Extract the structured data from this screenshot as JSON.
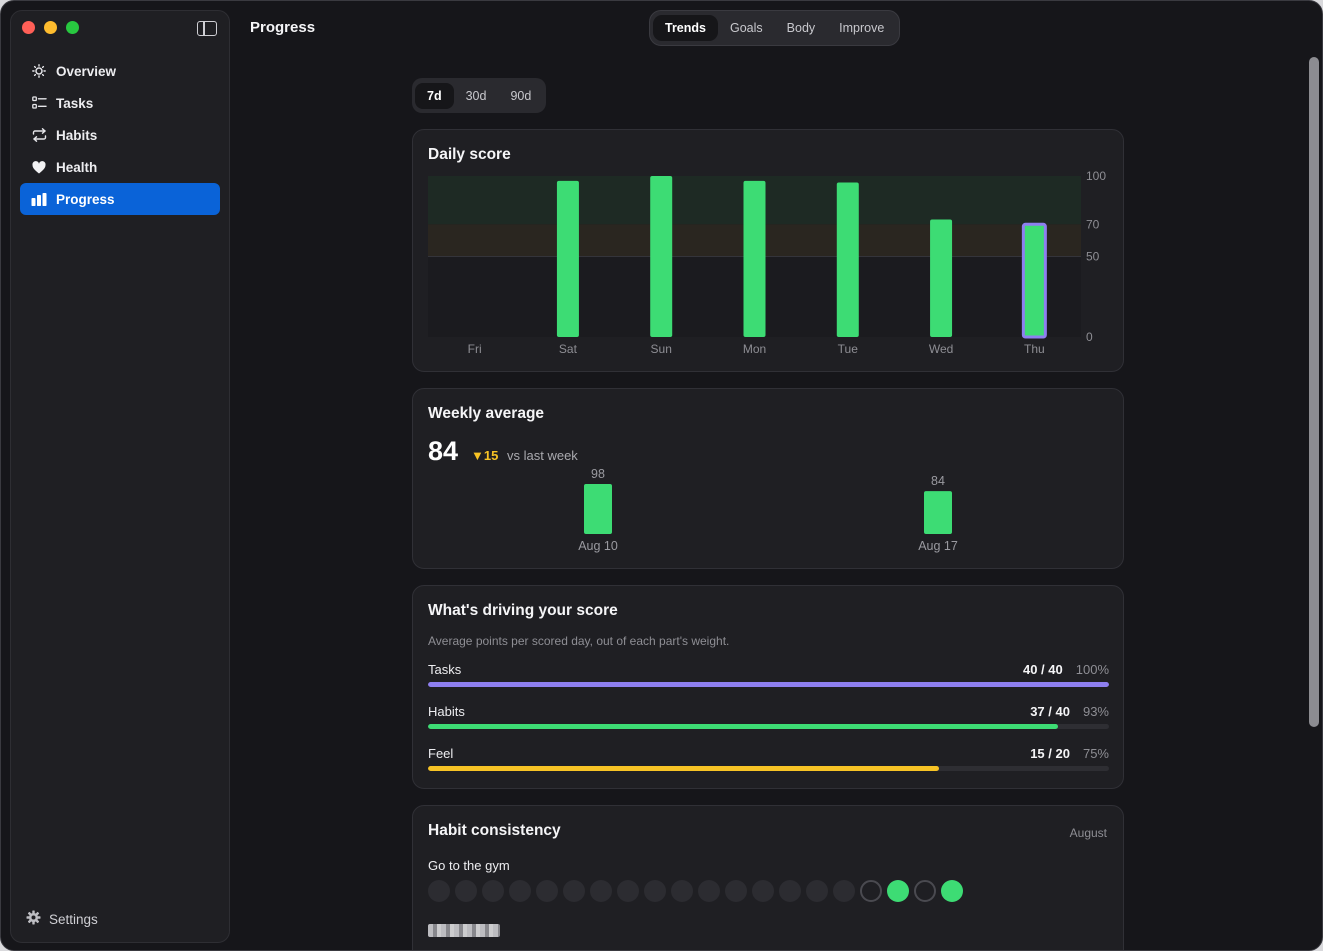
{
  "sidebar": {
    "items": [
      {
        "label": "Overview",
        "icon": "sun-icon"
      },
      {
        "label": "Tasks",
        "icon": "checklist-icon"
      },
      {
        "label": "Habits",
        "icon": "repeat-icon"
      },
      {
        "label": "Health",
        "icon": "heart-icon"
      },
      {
        "label": "Progress",
        "icon": "bar-chart-icon",
        "active": true
      }
    ],
    "settings_label": "Settings"
  },
  "header": {
    "title": "Progress",
    "tabs": [
      "Trends",
      "Goals",
      "Body",
      "Improve"
    ],
    "active_tab": "Trends"
  },
  "range": {
    "options": [
      "7d",
      "30d",
      "90d"
    ],
    "active": "7d"
  },
  "daily_score": {
    "title": "Daily score",
    "chart_data": {
      "type": "bar",
      "categories": [
        "Fri",
        "Sat",
        "Sun",
        "Mon",
        "Tue",
        "Wed",
        "Thu"
      ],
      "values": [
        0,
        97,
        100,
        97,
        96,
        73,
        70
      ],
      "ylim": [
        0,
        100
      ],
      "yticks": [
        "100",
        "70",
        "50",
        "0"
      ],
      "bands": [
        {
          "from": 70,
          "to": 100,
          "color": "#1e2a24"
        },
        {
          "from": 50,
          "to": 70,
          "color": "#2a2620"
        }
      ],
      "highlight": "Thu",
      "colors": {
        "bar": "#3ddc74",
        "highlight_outline": "#8e7ff0"
      }
    }
  },
  "weekly_average": {
    "title": "Weekly average",
    "value": "84",
    "delta": "▼15",
    "vs": "vs last week",
    "chart_data": {
      "type": "bar",
      "categories": [
        "Aug 10",
        "Aug 17"
      ],
      "values": [
        98,
        84
      ],
      "value_labels": [
        "98",
        "84"
      ],
      "color": "#3ddc74"
    }
  },
  "driving": {
    "title": "What's driving your score",
    "subtitle": "Average points per scored day, out of each part's weight.",
    "rows": [
      {
        "name": "Tasks",
        "fraction": "40 / 40",
        "percent": "100%",
        "value": 1.0,
        "color": "#8e7ff0"
      },
      {
        "name": "Habits",
        "fraction": "37 / 40",
        "percent": "93%",
        "value": 0.925,
        "color": "#3ddc74"
      },
      {
        "name": "Feel",
        "fraction": "15 / 20",
        "percent": "75%",
        "value": 0.75,
        "color": "#f7c325"
      }
    ]
  },
  "habit_consistency": {
    "title": "Habit consistency",
    "month": "August",
    "habits": [
      {
        "name": "Go to the gym",
        "days": [
          "none",
          "none",
          "none",
          "none",
          "none",
          "none",
          "none",
          "none",
          "none",
          "none",
          "none",
          "none",
          "none",
          "none",
          "none",
          "none",
          "miss",
          "done",
          "miss",
          "done"
        ]
      }
    ]
  }
}
